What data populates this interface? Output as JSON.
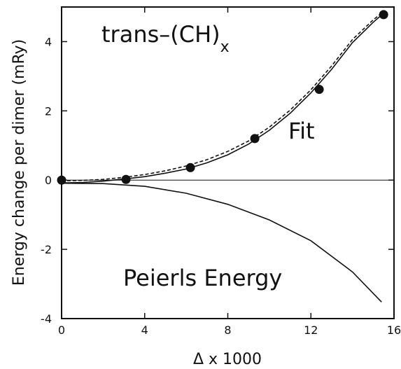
{
  "chart_data": {
    "type": "line",
    "title": "",
    "annotation_title": "trans–(CH)",
    "annotation_title_sub": "x",
    "xlabel": "Δ x 1000",
    "ylabel": "Energy change per dimer (mRy)",
    "xlim": [
      0,
      16
    ],
    "ylim": [
      -4,
      5
    ],
    "xticks": [
      0,
      4,
      8,
      12,
      16
    ],
    "yticks": [
      -4,
      -2,
      0,
      2,
      4
    ],
    "xtick_labels": [
      "0",
      "4",
      "8",
      "12",
      "16"
    ],
    "ytick_labels": [
      "-4",
      "-2",
      "0",
      "2",
      "4"
    ],
    "grid": false,
    "legend": "none",
    "series": [
      {
        "kind": "scatter",
        "x": [
          0.0,
          3.1,
          6.2,
          9.3,
          12.4,
          15.5
        ],
        "y": [
          0.0,
          0.02,
          0.36,
          1.2,
          2.62,
          4.78
        ]
      },
      {
        "name": "Fit",
        "kind": "line",
        "style": "solid",
        "x": [
          0,
          1,
          2,
          3,
          4,
          5,
          6,
          7,
          8,
          9,
          10,
          11,
          12,
          13,
          14,
          15,
          15.5
        ],
        "y": [
          -0.08,
          -0.07,
          -0.03,
          0.03,
          0.1,
          0.2,
          0.32,
          0.5,
          0.73,
          1.04,
          1.44,
          1.93,
          2.52,
          3.2,
          3.97,
          4.56,
          4.82
        ]
      },
      {
        "kind": "line",
        "style": "dashed",
        "x": [
          0,
          1,
          2,
          3,
          4,
          5,
          6,
          7,
          8,
          9,
          10,
          11,
          12,
          13,
          14,
          15,
          15.5
        ],
        "y": [
          -0.02,
          -0.01,
          0.02,
          0.08,
          0.16,
          0.27,
          0.41,
          0.59,
          0.83,
          1.13,
          1.53,
          2.02,
          2.61,
          3.3,
          4.06,
          4.63,
          4.87
        ]
      },
      {
        "name": "Peierls Energy",
        "kind": "line",
        "style": "solid",
        "x": [
          0,
          2,
          4,
          6,
          8,
          10,
          12,
          14,
          15.4
        ],
        "y": [
          -0.09,
          -0.1,
          -0.18,
          -0.38,
          -0.7,
          -1.15,
          -1.75,
          -2.65,
          -3.52
        ]
      },
      {
        "kind": "line",
        "style": "solid",
        "x": [
          0,
          16
        ],
        "y": [
          0,
          0
        ]
      }
    ]
  }
}
